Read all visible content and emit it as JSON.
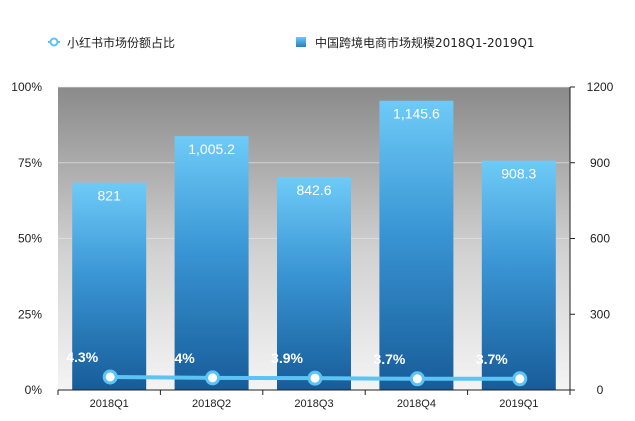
{
  "chart_data": {
    "type": "bar",
    "categories": [
      "2018Q1",
      "2018Q2",
      "2018Q3",
      "2018Q4",
      "2019Q1"
    ],
    "series": [
      {
        "name": "中国跨境电商市场规模2018Q1-2019Q1",
        "type": "bar",
        "axis": "right",
        "values": [
          821,
          1005.2,
          842.6,
          1145.6,
          908.3
        ],
        "labels": [
          "821",
          "1,005.2",
          "842.6",
          "1,145.6",
          "908.3"
        ],
        "color": "#2b7dbf"
      },
      {
        "name": "小红书市场份额占比",
        "type": "line",
        "axis": "left",
        "values": [
          4.3,
          4,
          3.9,
          3.7,
          3.7
        ],
        "labels": [
          "4.3%",
          "4%",
          "3.9%",
          "3.7%",
          "3.7%"
        ],
        "color": "#5bc4f5"
      }
    ],
    "y_left": {
      "ticks": [
        "0%",
        "25%",
        "50%",
        "75%",
        "100%"
      ],
      "range": [
        0,
        100
      ]
    },
    "y_right": {
      "ticks": [
        "0",
        "300",
        "600",
        "900",
        "1200"
      ],
      "range": [
        0,
        1200
      ]
    },
    "legend_position": "top",
    "grid": true
  }
}
